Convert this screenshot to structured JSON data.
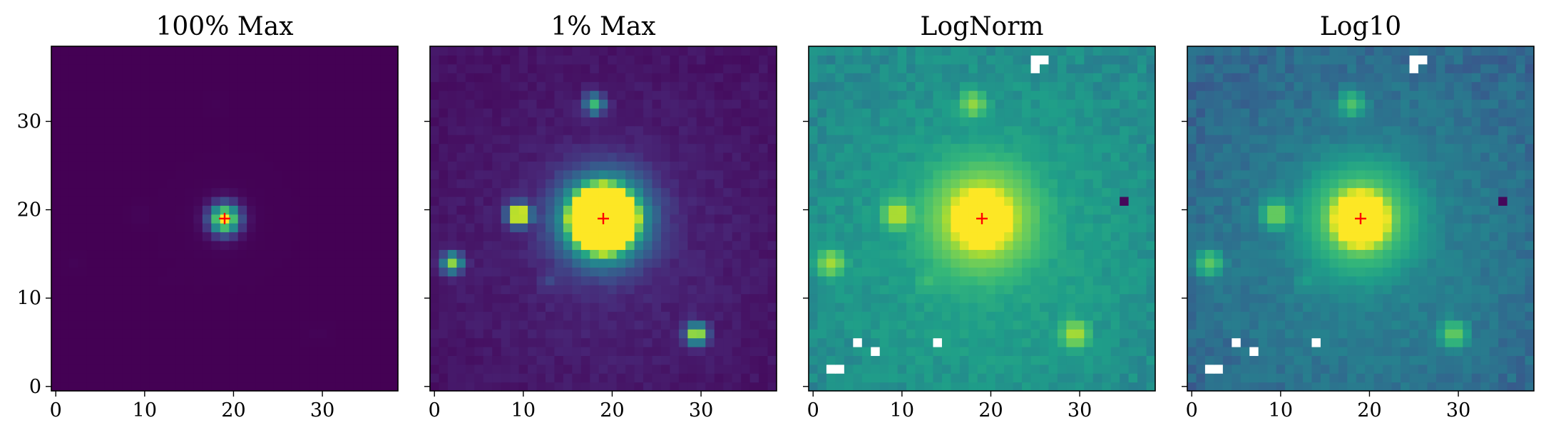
{
  "chart_data": [
    {
      "type": "heatmap",
      "title": "100% Max",
      "colormap": "viridis",
      "normalization": "linear",
      "vmax_fraction": 1.0,
      "grid_size": 39,
      "xlim": [
        -0.5,
        38.5
      ],
      "ylim": [
        -0.5,
        38.5
      ],
      "origin": "lower",
      "x_ticks": [
        0,
        10,
        20,
        30
      ],
      "y_ticks": [
        0,
        10,
        20,
        30
      ],
      "x_tick_labels": [
        "0",
        "10",
        "20",
        "30"
      ],
      "y_tick_labels": [
        "0",
        "10",
        "20",
        "30"
      ],
      "show_y_tick_labels": true,
      "marker": {
        "x": 19,
        "y": 19,
        "symbol": "+",
        "color": "#ff0000"
      },
      "sources": [
        {
          "x": 19,
          "y": 19,
          "peak": 1.0
        },
        {
          "x": 9.5,
          "y": 19.5,
          "peak": 0.012
        },
        {
          "x": 2,
          "y": 14,
          "peak": 0.0075
        },
        {
          "x": 29.5,
          "y": 6,
          "peak": 0.009
        },
        {
          "x": 18,
          "y": 32,
          "peak": 0.006
        },
        {
          "x": 13,
          "y": 12,
          "peak": 0.001
        }
      ],
      "blank_pixels": []
    },
    {
      "type": "heatmap",
      "title": "1% Max",
      "colormap": "viridis",
      "normalization": "linear",
      "vmax_fraction": 0.01,
      "grid_size": 39,
      "xlim": [
        -0.5,
        38.5
      ],
      "ylim": [
        -0.5,
        38.5
      ],
      "origin": "lower",
      "x_ticks": [
        0,
        10,
        20,
        30
      ],
      "y_ticks": [
        0,
        10,
        20,
        30
      ],
      "x_tick_labels": [
        "0",
        "10",
        "20",
        "30"
      ],
      "y_tick_labels": [
        "",
        "",
        "",
        ""
      ],
      "show_y_tick_labels": false,
      "marker": {
        "x": 19,
        "y": 19,
        "symbol": "+",
        "color": "#ff0000"
      },
      "sources": [
        {
          "x": 19,
          "y": 19,
          "peak": 1.0
        },
        {
          "x": 9.5,
          "y": 19.5,
          "peak": 0.012
        },
        {
          "x": 2,
          "y": 14,
          "peak": 0.0075
        },
        {
          "x": 29.5,
          "y": 6,
          "peak": 0.009
        },
        {
          "x": 18,
          "y": 32,
          "peak": 0.006
        },
        {
          "x": 13,
          "y": 12,
          "peak": 0.001
        }
      ],
      "blank_pixels": []
    },
    {
      "type": "heatmap",
      "title": "LogNorm",
      "colormap": "viridis",
      "normalization": "log",
      "grid_size": 39,
      "xlim": [
        -0.5,
        38.5
      ],
      "ylim": [
        -0.5,
        38.5
      ],
      "origin": "lower",
      "x_ticks": [
        0,
        10,
        20,
        30
      ],
      "y_ticks": [
        0,
        10,
        20,
        30
      ],
      "x_tick_labels": [
        "0",
        "10",
        "20",
        "30"
      ],
      "y_tick_labels": [
        "",
        "",
        "",
        ""
      ],
      "show_y_tick_labels": false,
      "marker": {
        "x": 19,
        "y": 19,
        "symbol": "+",
        "color": "#ff0000"
      },
      "sources": [
        {
          "x": 19,
          "y": 19,
          "peak": 1.0
        },
        {
          "x": 9.5,
          "y": 19.5,
          "peak": 0.012
        },
        {
          "x": 2,
          "y": 14,
          "peak": 0.0075
        },
        {
          "x": 29.5,
          "y": 6,
          "peak": 0.009
        },
        {
          "x": 18,
          "y": 32,
          "peak": 0.006
        },
        {
          "x": 13,
          "y": 12,
          "peak": 0.001
        }
      ],
      "blank_pixels": [
        [
          25,
          36
        ],
        [
          25,
          37
        ],
        [
          26,
          37
        ],
        [
          2,
          2
        ],
        [
          3,
          2
        ],
        [
          5,
          5
        ],
        [
          7,
          4
        ],
        [
          14,
          5
        ]
      ],
      "dark_pixels": [
        [
          35,
          21
        ]
      ]
    },
    {
      "type": "heatmap",
      "title": "Log10",
      "colormap": "viridis",
      "normalization": "log10",
      "grid_size": 39,
      "xlim": [
        -0.5,
        38.5
      ],
      "ylim": [
        -0.5,
        38.5
      ],
      "origin": "lower",
      "x_ticks": [
        0,
        10,
        20,
        30
      ],
      "y_ticks": [
        0,
        10,
        20,
        30
      ],
      "x_tick_labels": [
        "0",
        "10",
        "20",
        "30"
      ],
      "y_tick_labels": [
        "",
        "",
        "",
        ""
      ],
      "show_y_tick_labels": false,
      "marker": {
        "x": 19,
        "y": 19,
        "symbol": "+",
        "color": "#ff0000"
      },
      "sources": [
        {
          "x": 19,
          "y": 19,
          "peak": 1.0
        },
        {
          "x": 9.5,
          "y": 19.5,
          "peak": 0.012
        },
        {
          "x": 2,
          "y": 14,
          "peak": 0.0075
        },
        {
          "x": 29.5,
          "y": 6,
          "peak": 0.009
        },
        {
          "x": 18,
          "y": 32,
          "peak": 0.006
        },
        {
          "x": 13,
          "y": 12,
          "peak": 0.001
        }
      ],
      "blank_pixels": [
        [
          25,
          36
        ],
        [
          25,
          37
        ],
        [
          26,
          37
        ],
        [
          2,
          2
        ],
        [
          3,
          2
        ],
        [
          5,
          5
        ],
        [
          7,
          4
        ],
        [
          14,
          5
        ]
      ],
      "dark_pixels": [
        [
          35,
          21
        ]
      ]
    }
  ]
}
